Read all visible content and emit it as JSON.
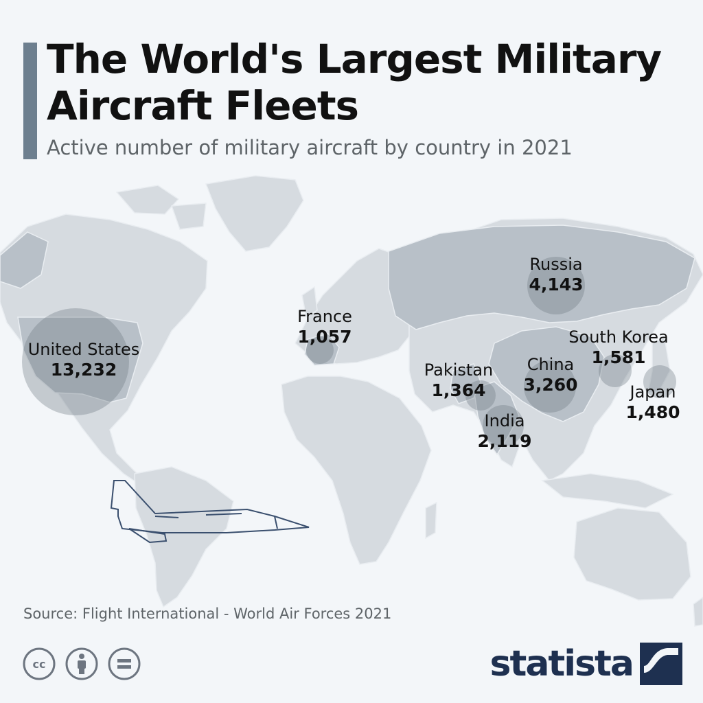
{
  "title": "The World's Largest Military Aircraft Fleets",
  "subtitle": "Active number of military aircraft by country in 2021",
  "source": "Source: Flight International - World Air Forces 2021",
  "brand": "statista",
  "colors": {
    "background": "#f3f6f9",
    "land": "#d6dbe0",
    "highlight": "#b8c0c8",
    "bubble": "#7d868f",
    "accent_bar": "#6d7f8f",
    "brand": "#1e3050"
  },
  "icons": [
    "cc-icon",
    "attribution-icon",
    "no-derivatives-icon",
    "statista-logo-icon",
    "fighter-jet-icon"
  ],
  "countries": [
    {
      "name": "United States",
      "value": "13,232"
    },
    {
      "name": "Russia",
      "value": "4,143"
    },
    {
      "name": "China",
      "value": "3,260"
    },
    {
      "name": "India",
      "value": "2,119"
    },
    {
      "name": "South Korea",
      "value": "1,581"
    },
    {
      "name": "Japan",
      "value": "1,480"
    },
    {
      "name": "Pakistan",
      "value": "1,364"
    },
    {
      "name": "France",
      "value": "1,057"
    }
  ]
}
